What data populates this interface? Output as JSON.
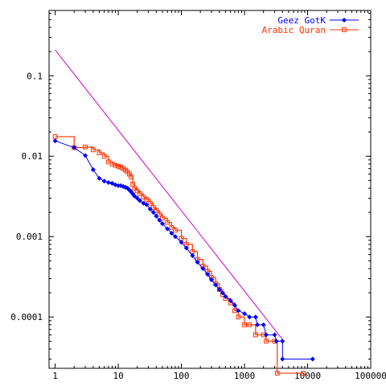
{
  "chart_data": {
    "type": "line",
    "xscale": "log",
    "yscale": "log",
    "xlim": [
      0.8,
      100000
    ],
    "ylim": [
      2.3e-05,
      0.65
    ],
    "grid": false,
    "legend_position": "top-right",
    "xticks": [
      {
        "value": 1,
        "label": "1"
      },
      {
        "value": 10,
        "label": "10"
      },
      {
        "value": 100,
        "label": "100"
      },
      {
        "value": 1000,
        "label": "1000"
      },
      {
        "value": 10000,
        "label": "10000"
      },
      {
        "value": 100000,
        "label": "100000"
      }
    ],
    "yticks": [
      {
        "value": 0.1,
        "label": "0.1"
      },
      {
        "value": 0.01,
        "label": "0.01"
      },
      {
        "value": 0.001,
        "label": "0.001"
      },
      {
        "value": 0.0001,
        "label": "0.0001"
      }
    ],
    "series": [
      {
        "name": "Geez GotK",
        "color": "#0000ff",
        "marker": "diamond",
        "style": "line",
        "points": [
          [
            1,
            0.0155
          ],
          [
            2,
            0.0128
          ],
          [
            3,
            0.0102
          ],
          [
            4,
            0.0068
          ],
          [
            5,
            0.0053
          ],
          [
            6,
            0.0049
          ],
          [
            7,
            0.0047
          ],
          [
            8,
            0.0046
          ],
          [
            9,
            0.0044
          ],
          [
            10,
            0.0043
          ],
          [
            11,
            0.0043
          ],
          [
            12,
            0.0042
          ],
          [
            13,
            0.0041
          ],
          [
            14,
            0.004
          ],
          [
            15,
            0.0038
          ],
          [
            16,
            0.0036
          ],
          [
            17,
            0.0034
          ],
          [
            18,
            0.0032
          ],
          [
            20,
            0.003
          ],
          [
            22,
            0.0028
          ],
          [
            25,
            0.0026
          ],
          [
            28,
            0.0025
          ],
          [
            32,
            0.0022
          ],
          [
            36,
            0.002
          ],
          [
            40,
            0.0018
          ],
          [
            45,
            0.0016
          ],
          [
            50,
            0.00145
          ],
          [
            60,
            0.00125
          ],
          [
            70,
            0.0011
          ],
          [
            80,
            0.001
          ],
          [
            100,
            0.00085
          ],
          [
            120,
            0.00072
          ],
          [
            150,
            0.00058
          ],
          [
            180,
            0.00048
          ],
          [
            220,
            0.0004
          ],
          [
            260,
            0.00034
          ],
          [
            300,
            0.00029
          ],
          [
            350,
            0.00025
          ],
          [
            400,
            0.00022
          ],
          [
            450,
            0.0002
          ],
          [
            500,
            0.00018
          ],
          [
            600,
            0.00016
          ],
          [
            700,
            0.00014
          ],
          [
            800,
            0.00012
          ],
          [
            1000,
            0.00011
          ],
          [
            1200,
            0.0001
          ],
          [
            1500,
            0.0001
          ],
          [
            1600,
            8e-05
          ],
          [
            2000,
            8e-05
          ],
          [
            2200,
            6e-05
          ],
          [
            3000,
            6e-05
          ],
          [
            3200,
            5e-05
          ],
          [
            4000,
            5e-05
          ],
          [
            4000,
            3e-05
          ],
          [
            12000,
            3e-05
          ]
        ]
      },
      {
        "name": "Arabic Quran",
        "color": "#ff3300",
        "marker": "square-open",
        "style": "steps",
        "points": [
          [
            1,
            0.0175
          ],
          [
            2,
            0.0128
          ],
          [
            3,
            0.013
          ],
          [
            4,
            0.012
          ],
          [
            5,
            0.011
          ],
          [
            6,
            0.01
          ],
          [
            7,
            0.0085
          ],
          [
            8,
            0.008
          ],
          [
            9,
            0.0077
          ],
          [
            10,
            0.0075
          ],
          [
            11,
            0.0073
          ],
          [
            12,
            0.007
          ],
          [
            13,
            0.0067
          ],
          [
            14,
            0.0064
          ],
          [
            15,
            0.006
          ],
          [
            16,
            0.0055
          ],
          [
            17,
            0.0045
          ],
          [
            18,
            0.004
          ],
          [
            20,
            0.0037
          ],
          [
            22,
            0.0034
          ],
          [
            25,
            0.0031
          ],
          [
            28,
            0.0029
          ],
          [
            32,
            0.0026
          ],
          [
            36,
            0.0023
          ],
          [
            40,
            0.0021
          ],
          [
            45,
            0.0019
          ],
          [
            50,
            0.0017
          ],
          [
            60,
            0.0015
          ],
          [
            70,
            0.0013
          ],
          [
            80,
            0.0012
          ],
          [
            100,
            0.00095
          ],
          [
            120,
            0.0008
          ],
          [
            150,
            0.00065
          ],
          [
            180,
            0.00052
          ],
          [
            220,
            0.00043
          ],
          [
            260,
            0.00037
          ],
          [
            300,
            0.00031
          ],
          [
            350,
            0.00026
          ],
          [
            400,
            0.00022
          ],
          [
            450,
            0.00019
          ],
          [
            500,
            0.00017
          ],
          [
            600,
            0.00015
          ],
          [
            700,
            0.00012
          ],
          [
            800,
            0.0001
          ],
          [
            1000,
            8e-05
          ],
          [
            1200,
            8e-05
          ],
          [
            1500,
            6e-05
          ],
          [
            2000,
            6e-05
          ],
          [
            2200,
            5e-05
          ],
          [
            3000,
            5e-05
          ],
          [
            3300,
            2e-05
          ],
          [
            8500,
            2e-05
          ]
        ]
      },
      {
        "name": "",
        "color": "#cc00cc",
        "marker": "none",
        "style": "line",
        "points": [
          [
            1,
            0.21
          ],
          [
            4000,
            5.25e-05
          ]
        ]
      }
    ]
  }
}
